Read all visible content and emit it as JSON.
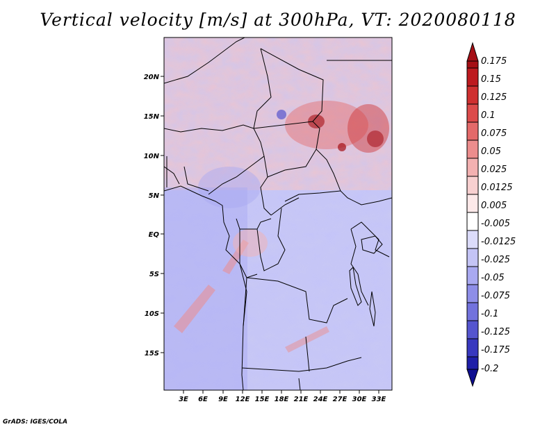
{
  "title": "Vertical velocity [m/s] at 300hPa, VT: 2020080118",
  "credit": "GrADS: IGES/COLA",
  "map": {
    "lat_labels": [
      "20N",
      "15N",
      "10N",
      "5N",
      "EQ",
      "5S",
      "10S",
      "15S"
    ],
    "lon_labels": [
      "3E",
      "6E",
      "9E",
      "12E",
      "15E",
      "18E",
      "21E",
      "24E",
      "27E",
      "30E",
      "33E"
    ]
  },
  "colorbar": {
    "labels": [
      "0.175",
      "0.15",
      "0.125",
      "0.1",
      "0.075",
      "0.05",
      "0.025",
      "0.0125",
      "0.005",
      "-0.005",
      "-0.0125",
      "-0.025",
      "-0.05",
      "-0.075",
      "-0.1",
      "-0.125",
      "-0.175",
      "-0.2"
    ],
    "colors": [
      "#a50f15",
      "#bd1a1f",
      "#cf3030",
      "#dc4b4b",
      "#e46a6a",
      "#ec8d8d",
      "#f3b1b1",
      "#f8d0d0",
      "#fde9e9",
      "#ffffff",
      "#dcdcfa",
      "#c4c4f6",
      "#a9a9f1",
      "#8e8ee8",
      "#7272dd",
      "#5555cf",
      "#3838bf",
      "#1f1fa8",
      "#0e0e90"
    ]
  }
}
